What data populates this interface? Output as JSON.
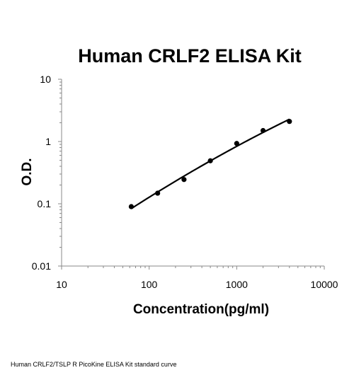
{
  "chart_data": {
    "type": "scatter",
    "title": "Human CRLF2 ELISA Kit",
    "xlabel": "Concentration(pg/ml)",
    "ylabel": "O.D.",
    "x_scale": "log",
    "y_scale": "log",
    "xlim": [
      10,
      10000
    ],
    "ylim": [
      0.01,
      10
    ],
    "x_ticks": [
      "10",
      "100",
      "1000",
      "10000"
    ],
    "y_ticks": [
      "0.01",
      "0.1",
      "1",
      "10"
    ],
    "grid": false,
    "legend": "none",
    "series": [
      {
        "x": [
          62.5,
          125,
          250,
          500,
          1000,
          2000,
          4000
        ],
        "y": [
          0.09,
          0.148,
          0.245,
          0.49,
          0.93,
          1.5,
          2.1
        ],
        "trendline": true,
        "color": "#000000"
      }
    ]
  },
  "caption": "Human CRLF2/TSLP R PicoKine ELISA Kit standard curve"
}
